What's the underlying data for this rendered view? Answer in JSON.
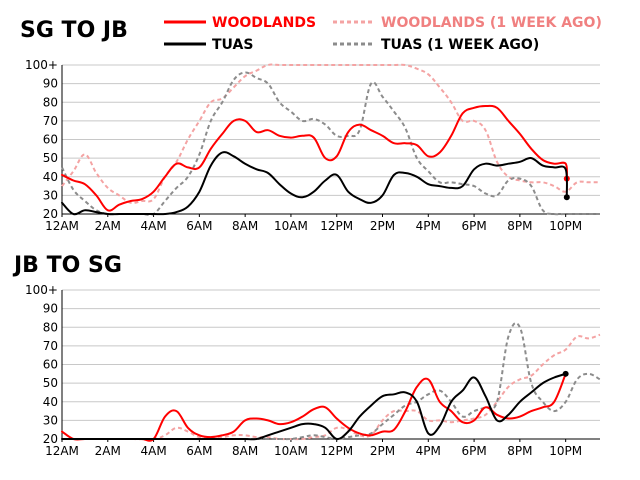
{
  "legend": [
    {
      "label": "WOODLANDS",
      "color": "#ff0000",
      "dashed": false
    },
    {
      "label": "WOODLANDS (1 WEEK AGO)",
      "color": "#f4a3a3",
      "dashed": true
    },
    {
      "label": "TUAS",
      "color": "#000000",
      "dashed": false
    },
    {
      "label": "TUAS (1 WEEK AGO)",
      "color": "#8c8c8c",
      "dashed": true
    }
  ],
  "chart_data": [
    {
      "type": "line",
      "title": "SG TO JB",
      "x_ticks": [
        "12AM",
        "2AM",
        "4AM",
        "6AM",
        "8AM",
        "10AM",
        "12PM",
        "2PM",
        "4PM",
        "6PM",
        "8PM",
        "10PM"
      ],
      "x_unit": "hours after 12AM",
      "y_ticks": [
        "20",
        "30",
        "40",
        "50",
        "60",
        "70",
        "80",
        "90",
        "100+"
      ],
      "ylim": [
        20,
        100
      ],
      "grid": true,
      "series": [
        {
          "name": "WOODLANDS",
          "color": "#ff0000",
          "dashed": false,
          "end_marker": true,
          "x": [
            0,
            0.5,
            1,
            1.5,
            2,
            2.5,
            3,
            3.5,
            4,
            4.5,
            5,
            5.5,
            6,
            6.5,
            7,
            7.5,
            8,
            8.5,
            9,
            9.5,
            10,
            10.5,
            11,
            11.5,
            12,
            12.5,
            13,
            13.5,
            14,
            14.5,
            15,
            15.5,
            16,
            16.5,
            17,
            17.5,
            18,
            18.5,
            19,
            19.5,
            20,
            20.5,
            21,
            21.5,
            22,
            22.05
          ],
          "values": [
            41,
            38,
            36,
            30,
            22,
            25,
            27,
            28,
            32,
            40,
            47,
            45,
            45,
            55,
            63,
            70,
            70,
            64,
            65,
            62,
            61,
            62,
            61,
            50,
            51,
            64,
            68,
            65,
            62,
            58,
            58,
            57,
            51,
            53,
            62,
            74,
            77,
            78,
            77,
            70,
            63,
            55,
            49,
            47,
            47,
            39
          ]
        },
        {
          "name": "WOODLANDS (1 WEEK AGO)",
          "color": "#f4a3a3",
          "dashed": true,
          "end_marker": false,
          "x": [
            0,
            0.5,
            1,
            1.5,
            2,
            2.5,
            3,
            3.5,
            4,
            4.5,
            5,
            5.5,
            6,
            6.5,
            7,
            7.5,
            8,
            8.5,
            9,
            9.5,
            10,
            11,
            12,
            13,
            14,
            14.5,
            15,
            15.5,
            16,
            16.5,
            17,
            17.5,
            18,
            18.5,
            19,
            19.5,
            20,
            20.5,
            21,
            21.5,
            22,
            22.5,
            23,
            23.5
          ],
          "values": [
            35,
            43,
            52,
            42,
            34,
            30,
            26,
            27,
            28,
            40,
            48,
            60,
            70,
            80,
            82,
            88,
            94,
            97,
            100,
            100,
            100,
            100,
            100,
            100,
            100,
            100,
            100,
            98,
            95,
            88,
            80,
            70,
            70,
            65,
            48,
            40,
            38,
            37,
            37,
            35,
            32,
            37,
            37,
            37
          ]
        },
        {
          "name": "TUAS",
          "color": "#000000",
          "dashed": false,
          "end_marker": true,
          "x": [
            0,
            0.5,
            1,
            1.5,
            2,
            2.5,
            3,
            3.5,
            4,
            4.5,
            5,
            5.5,
            6,
            6.5,
            7,
            7.5,
            8,
            8.5,
            9,
            9.5,
            10,
            10.5,
            11,
            11.5,
            12,
            12.5,
            13,
            13.5,
            14,
            14.5,
            15,
            15.5,
            16,
            16.5,
            17,
            17.5,
            18,
            18.5,
            19,
            19.5,
            20,
            20.5,
            21,
            21.5,
            22,
            22.05
          ],
          "values": [
            26,
            20,
            22,
            21,
            20,
            20,
            20,
            20,
            20,
            20,
            21,
            24,
            32,
            46,
            53,
            51,
            47,
            44,
            42,
            36,
            31,
            29,
            32,
            38,
            41,
            32,
            28,
            26,
            30,
            41,
            42,
            40,
            36,
            35,
            34,
            35,
            44,
            47,
            46,
            47,
            48,
            50,
            46,
            45,
            44,
            29
          ]
        },
        {
          "name": "TUAS (1 WEEK AGO)",
          "color": "#8c8c8c",
          "dashed": true,
          "end_marker": false,
          "x": [
            0,
            0.5,
            1,
            1.5,
            2,
            2.5,
            3,
            3.5,
            4,
            4.5,
            5,
            5.5,
            6,
            6.5,
            7,
            7.5,
            8,
            8.5,
            9,
            9.5,
            10,
            10.5,
            11,
            11.5,
            12,
            12.5,
            13,
            13.5,
            14,
            14.5,
            15,
            15.5,
            16,
            16.5,
            17,
            17.5,
            18,
            18.5,
            19,
            19.5,
            20,
            20.5,
            21,
            21.5,
            22,
            22.5,
            23,
            23.5
          ],
          "values": [
            45,
            33,
            27,
            22,
            20,
            20,
            20,
            20,
            20,
            27,
            34,
            40,
            52,
            70,
            80,
            92,
            96,
            93,
            90,
            80,
            75,
            70,
            71,
            68,
            62,
            62,
            65,
            90,
            83,
            75,
            66,
            50,
            43,
            37,
            37,
            36,
            35,
            31,
            30,
            38,
            39,
            35,
            22,
            20,
            20,
            20,
            20,
            20
          ]
        }
      ]
    },
    {
      "type": "line",
      "title": "JB TO SG",
      "x_ticks": [
        "12AM",
        "2AM",
        "4AM",
        "6AM",
        "8AM",
        "10AM",
        "12PM",
        "2PM",
        "4PM",
        "6PM",
        "8PM",
        "10PM"
      ],
      "x_unit": "hours after 12AM",
      "y_ticks": [
        "20",
        "30",
        "40",
        "50",
        "60",
        "70",
        "80",
        "90",
        "100+"
      ],
      "ylim": [
        20,
        100
      ],
      "grid": true,
      "series": [
        {
          "name": "WOODLANDS",
          "color": "#ff0000",
          "dashed": false,
          "end_marker": false,
          "x": [
            0,
            0.5,
            1,
            1.5,
            2,
            2.5,
            3,
            3.5,
            4,
            4.5,
            5,
            5.5,
            6,
            6.5,
            7,
            7.5,
            8,
            8.5,
            9,
            9.5,
            10,
            10.5,
            11,
            11.5,
            12,
            12.5,
            13,
            13.5,
            14,
            14.5,
            15,
            15.5,
            16,
            16.5,
            17,
            17.5,
            18,
            18.5,
            19,
            19.5,
            20,
            20.5,
            21,
            21.5,
            22
          ],
          "values": [
            24,
            20,
            20,
            20,
            20,
            20,
            20,
            20,
            20,
            32,
            35,
            26,
            22,
            21,
            22,
            24,
            30,
            31,
            30,
            28,
            29,
            32,
            36,
            37,
            31,
            26,
            23,
            22,
            24,
            25,
            35,
            48,
            52,
            40,
            35,
            29,
            30,
            37,
            33,
            31,
            32,
            35,
            37,
            40,
            55
          ]
        },
        {
          "name": "WOODLANDS (1 WEEK AGO)",
          "color": "#f4a3a3",
          "dashed": true,
          "end_marker": false,
          "x": [
            0,
            1,
            2,
            3,
            4,
            4.5,
            5,
            5.5,
            6,
            6.5,
            7,
            7.5,
            8,
            8.5,
            9,
            9.5,
            10,
            10.5,
            11,
            11.5,
            12,
            12.5,
            13,
            13.5,
            14,
            14.5,
            15,
            15.5,
            16,
            16.5,
            17,
            17.5,
            18,
            18.5,
            19,
            19.5,
            20,
            20.5,
            21,
            21.5,
            22,
            22.5,
            23,
            23.5
          ],
          "values": [
            20,
            20,
            20,
            20,
            20,
            22,
            26,
            24,
            21,
            21,
            21,
            22,
            22,
            21,
            21,
            20,
            20,
            20,
            21,
            22,
            26,
            25,
            22,
            22,
            30,
            35,
            35,
            35,
            30,
            30,
            29,
            30,
            31,
            33,
            40,
            48,
            52,
            54,
            60,
            65,
            68,
            75,
            74,
            76
          ]
        },
        {
          "name": "TUAS",
          "color": "#000000",
          "dashed": false,
          "end_marker": true,
          "x": [
            0,
            1,
            2,
            3,
            4,
            4.5,
            5,
            5.5,
            6,
            6.5,
            7,
            7.5,
            8,
            8.5,
            9,
            9.5,
            10,
            10.5,
            11,
            11.5,
            12,
            12.5,
            13,
            13.5,
            14,
            14.5,
            15,
            15.5,
            16,
            16.5,
            17,
            17.5,
            18,
            18.5,
            19,
            19.5,
            20,
            20.5,
            21,
            21.5,
            22
          ],
          "values": [
            20,
            20,
            20,
            20,
            20,
            20,
            20,
            20,
            20,
            20,
            20,
            20,
            20,
            20,
            22,
            24,
            26,
            28,
            28,
            26,
            20,
            24,
            32,
            38,
            43,
            44,
            45,
            40,
            23,
            27,
            40,
            46,
            53,
            43,
            30,
            33,
            40,
            45,
            50,
            53,
            55
          ]
        },
        {
          "name": "TUAS (1 WEEK AGO)",
          "color": "#8c8c8c",
          "dashed": true,
          "end_marker": false,
          "x": [
            0,
            1,
            2,
            3,
            4,
            5,
            6,
            7,
            8,
            9,
            9.5,
            10,
            10.5,
            11,
            11.5,
            12,
            12.5,
            13,
            13.5,
            14,
            14.5,
            15,
            15.5,
            16,
            16.5,
            17,
            17.5,
            18,
            18.5,
            19,
            19.5,
            20,
            20.5,
            21,
            21.5,
            22,
            22.5,
            23,
            23.5
          ],
          "values": [
            20,
            20,
            20,
            20,
            20,
            20,
            20,
            20,
            20,
            20,
            20,
            20,
            21,
            22,
            21,
            20,
            21,
            22,
            23,
            28,
            33,
            38,
            40,
            44,
            46,
            40,
            32,
            35,
            37,
            40,
            75,
            80,
            50,
            40,
            35,
            40,
            52,
            55,
            52
          ]
        }
      ]
    }
  ]
}
